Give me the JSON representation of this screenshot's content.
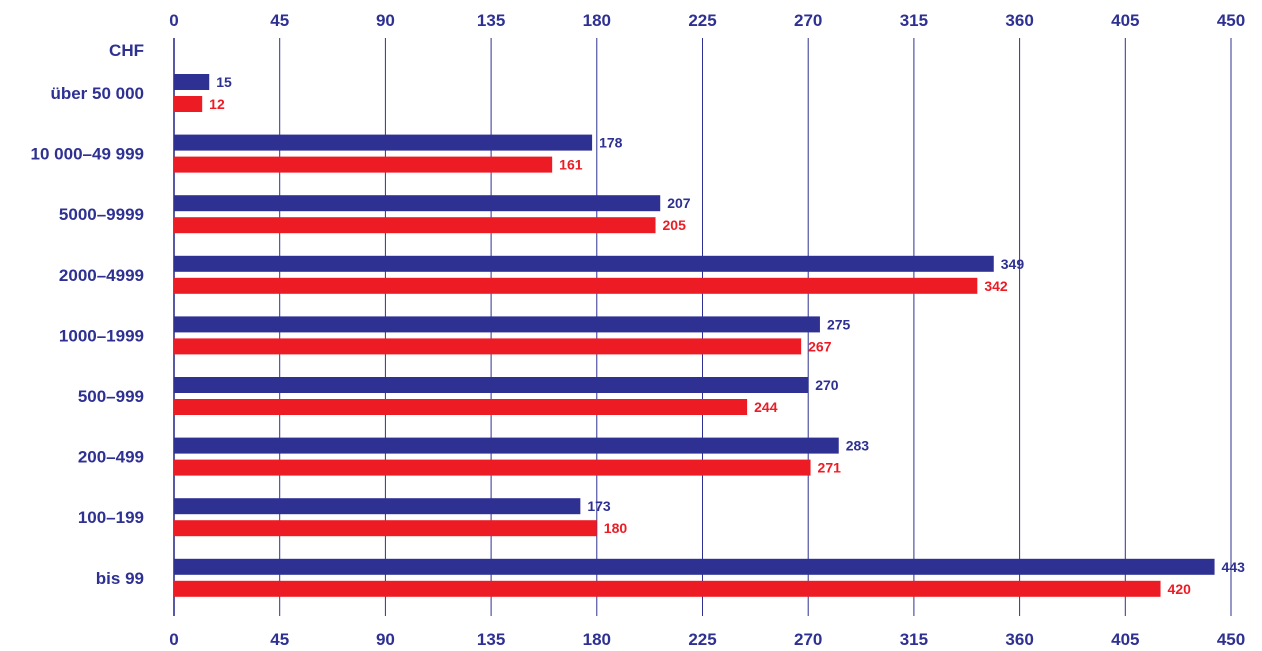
{
  "colors": {
    "series_a": "#2e3192",
    "series_b": "#ed1c24",
    "axis": "#2e3192",
    "grid": "#2e3192"
  },
  "chart_data": {
    "type": "bar",
    "orientation": "horizontal",
    "unit_label": "CHF",
    "categories": [
      "über 50 000",
      "10 000–49 999",
      "5000–9999",
      "2000–4999",
      "1000–1999",
      "500–999",
      "200–499",
      "100–199",
      "bis 99"
    ],
    "series": [
      {
        "color": "#2e3192",
        "values": [
          15,
          178,
          207,
          349,
          275,
          270,
          283,
          173,
          443
        ]
      },
      {
        "color": "#ed1c24",
        "values": [
          12,
          161,
          205,
          342,
          267,
          244,
          271,
          180,
          420
        ]
      }
    ],
    "xlim": [
      0,
      450
    ],
    "xticks": [
      0,
      45,
      90,
      135,
      180,
      225,
      270,
      315,
      360,
      405,
      450
    ],
    "tick_labels_top": true,
    "tick_labels_bottom": true,
    "grid": true,
    "legend": false
  }
}
